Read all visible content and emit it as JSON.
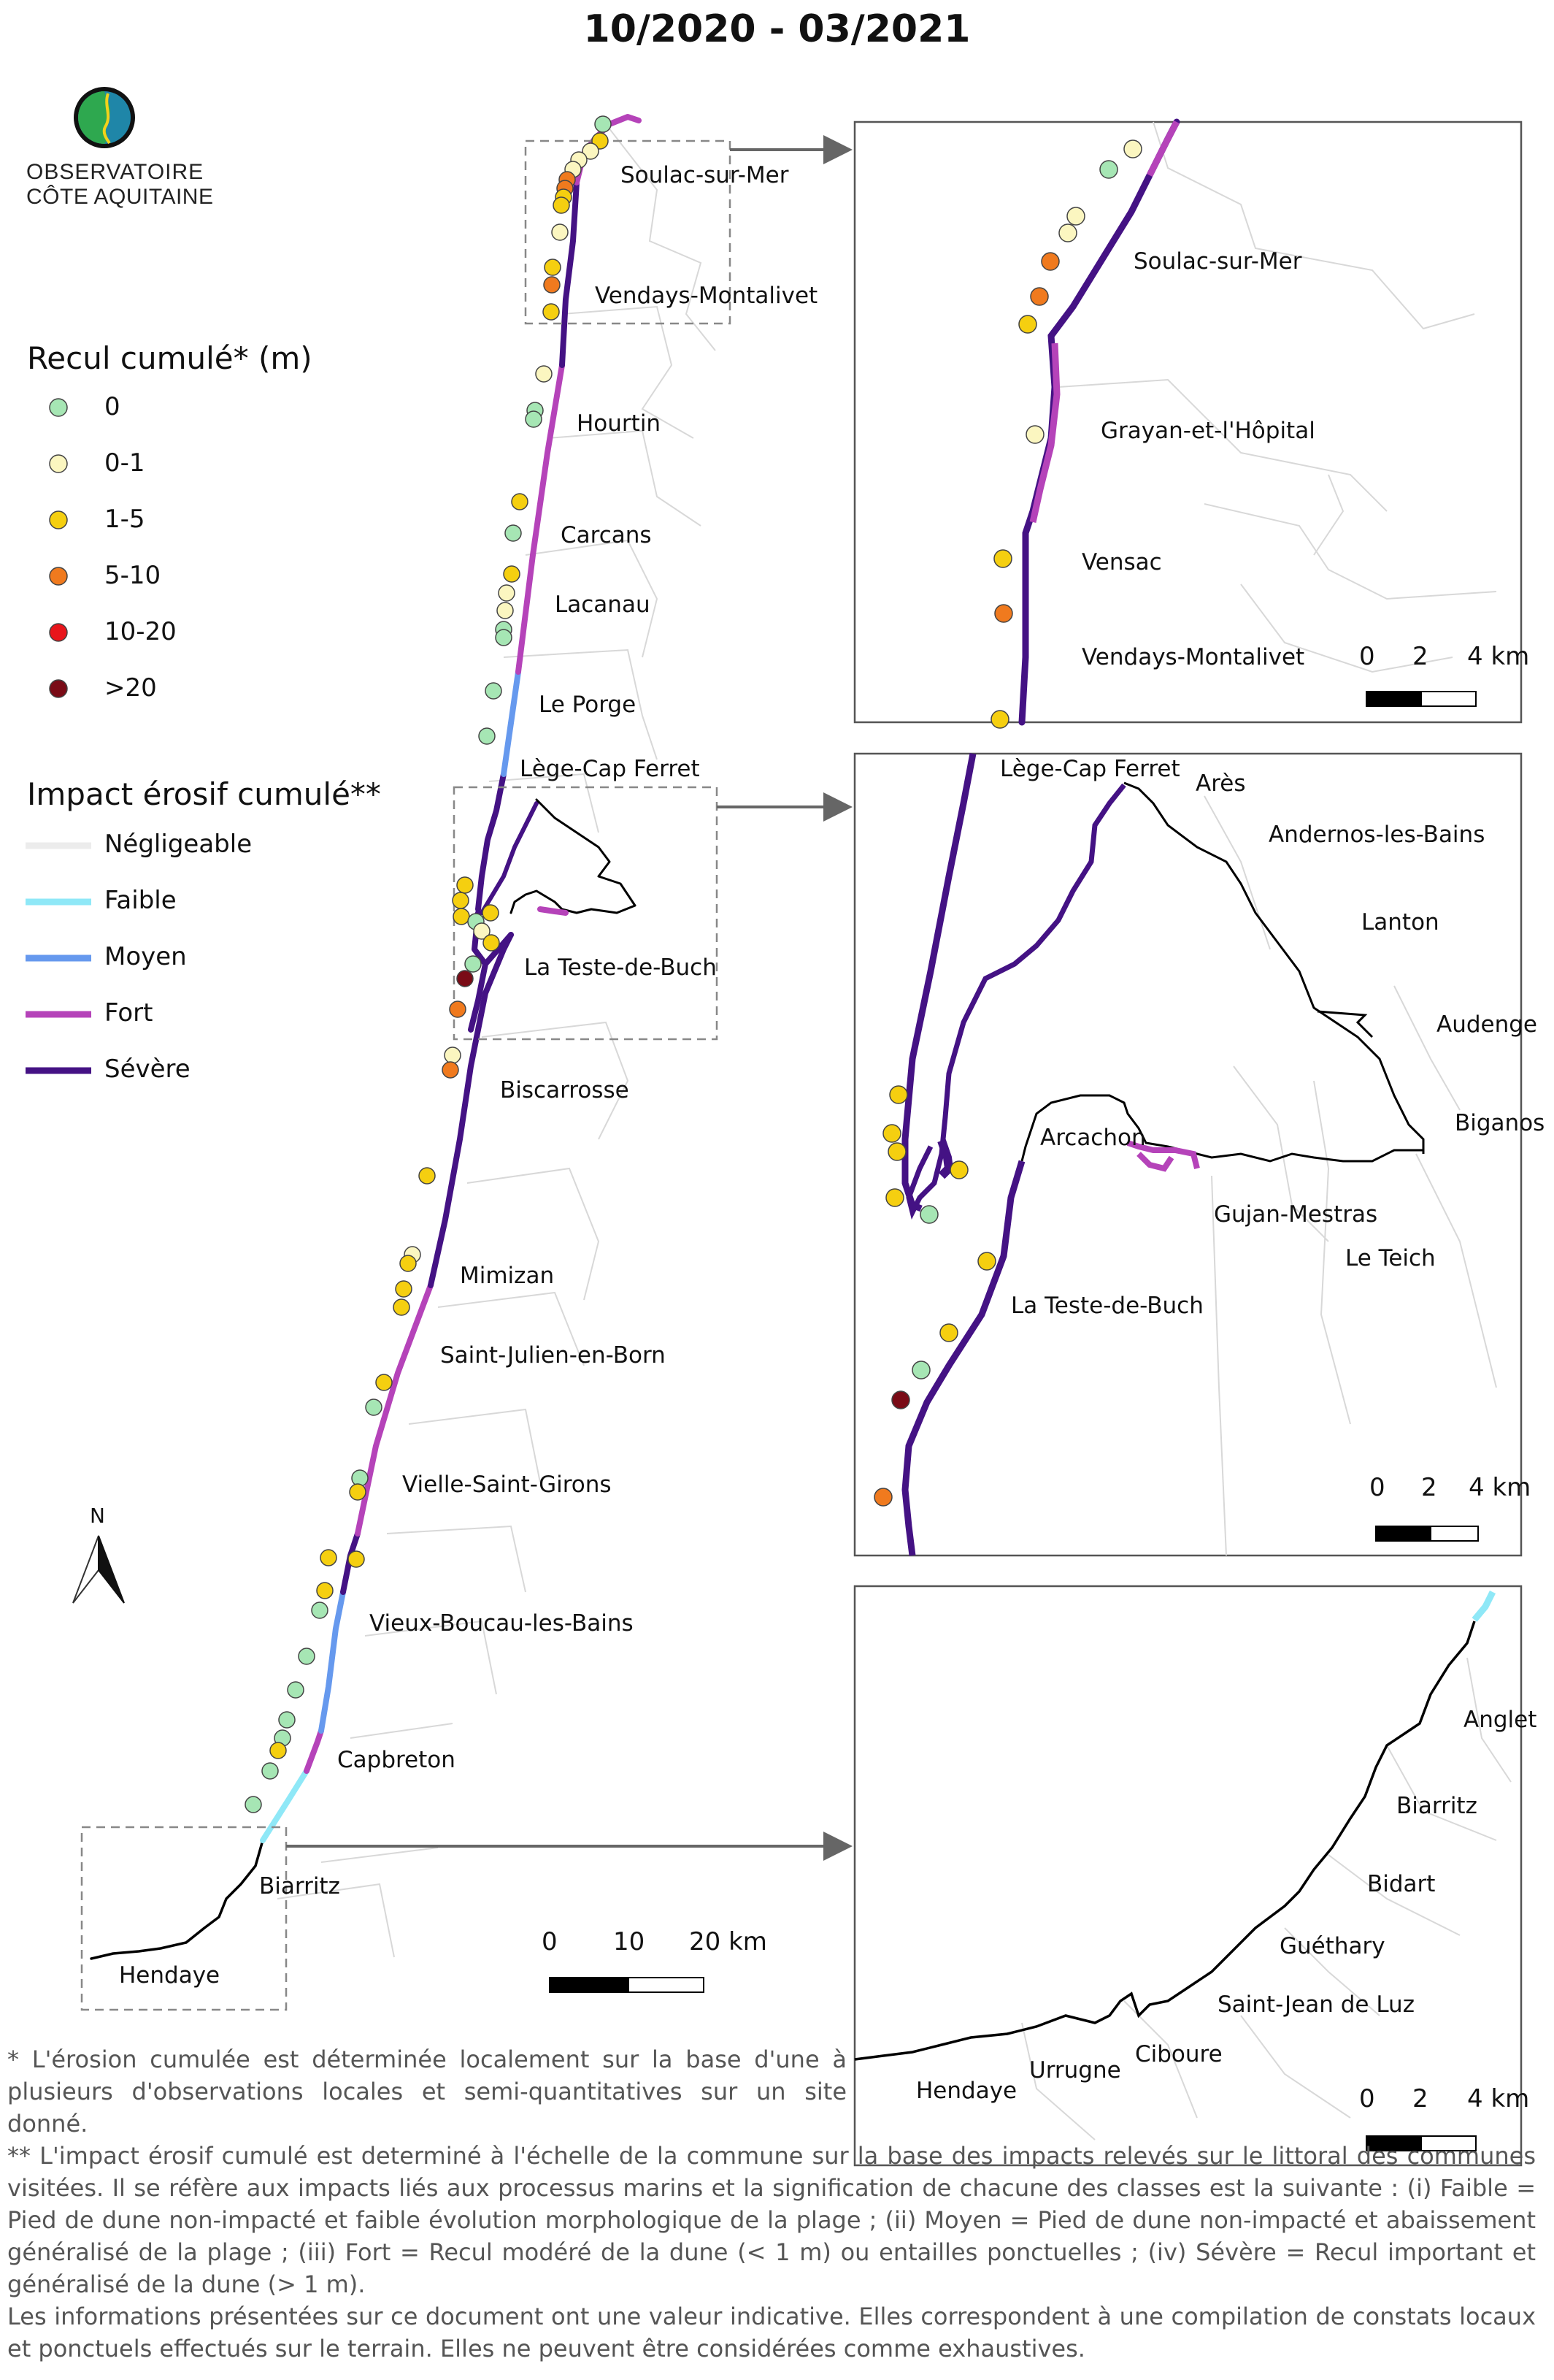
{
  "title": "10/2020 - 03/2021",
  "logo": {
    "line1": "OBSERVATOIRE",
    "line2": "CÔTE AQUITAINE"
  },
  "colors": {
    "recul": {
      "0": "#a6e6b4",
      "0-1": "#fbf6c0",
      "1-5": "#f5cf10",
      "5-10": "#f07a1e",
      "10-20": "#e8151b",
      ">20": "#7a0b16"
    },
    "impact": {
      "negligeable": "#ececec",
      "faible": "#8fe8f7",
      "moyen": "#6699ee",
      "fort": "#b543b9",
      "severe": "#441284"
    }
  },
  "legend_recul": {
    "title": "Recul cumulé* (m)",
    "items": [
      {
        "key": "0",
        "label": "0"
      },
      {
        "key": "0-1",
        "label": "0-1"
      },
      {
        "key": "1-5",
        "label": "1-5"
      },
      {
        "key": "5-10",
        "label": "5-10"
      },
      {
        "key": "10-20",
        "label": "10-20"
      },
      {
        "key": ">20",
        "label": ">20"
      }
    ]
  },
  "legend_impact": {
    "title": "Impact érosif cumulé**",
    "items": [
      {
        "key": "negligeable",
        "label": "Négligeable"
      },
      {
        "key": "faible",
        "label": "Faible"
      },
      {
        "key": "moyen",
        "label": "Moyen"
      },
      {
        "key": "fort",
        "label": "Fort"
      },
      {
        "key": "severe",
        "label": "Sévère"
      }
    ]
  },
  "north_label": "N",
  "main_map": {
    "places": [
      "Soulac-sur-Mer",
      "Vendays-Montalivet",
      "Hourtin",
      "Carcans",
      "Lacanau",
      "Le Porge",
      "Lège-Cap Ferret",
      "La Teste-de-Buch",
      "Biscarrosse",
      "Mimizan",
      "Saint-Julien-en-Born",
      "Vielle-Saint-Girons",
      "Vieux-Boucau-les-Bains",
      "Capbreton",
      "Biarritz",
      "Hendaye"
    ],
    "scale": {
      "labels": [
        "0",
        "10",
        "20 km"
      ]
    }
  },
  "inset_north": {
    "places": [
      "Soulac-sur-Mer",
      "Grayan-et-l'Hôpital",
      "Vensac",
      "Vendays-Montalivet"
    ],
    "scale": {
      "labels": [
        "0",
        "2",
        "4 km"
      ]
    }
  },
  "inset_arcachon": {
    "places": [
      "Lège-Cap Ferret",
      "Arès",
      "Andernos-les-Bains",
      "Lanton",
      "Audenge",
      "Biganos",
      "Arcachon",
      "Gujan-Mestras",
      "Le Teich",
      "La Teste-de-Buch"
    ],
    "scale": {
      "labels": [
        "0",
        "2",
        "4 km"
      ]
    }
  },
  "inset_south": {
    "places": [
      "Anglet",
      "Biarritz",
      "Bidart",
      "Guéthary",
      "Saint-Jean de Luz",
      "Ciboure",
      "Urrugne",
      "Hendaye"
    ],
    "scale": {
      "labels": [
        "0",
        "2",
        "4 km"
      ]
    }
  },
  "notes": [
    "* L'érosion cumulée est déterminée localement sur la base d'une à plusieurs d'observations locales et semi-quantitatives sur un site donné.",
    "** L'impact érosif cumulé est determiné à l'échelle de la commune sur la base des impacts relevés sur le littoral des communes visitées. Il se réfère aux impacts liés aux processus marins et la signification de chacune des classes est la suivante : (i) Faible = Pied de dune non-impacté et faible évolution morphologique de la plage ; (ii) Moyen = Pied de dune non-impacté et abaissement généralisé de la plage ; (iii) Fort = Recul modéré de la dune (< 1 m) ou entailles ponctuelles ; (iv) Sévère = Recul important et généralisé de la dune (> 1 m).",
    "Les informations présentées sur ce document ont une valeur indicative. Elles correspondent à une compilation de constats locaux et ponctuels effectués sur le terrain. Elles ne peuvent être considérées comme exhaustives."
  ]
}
